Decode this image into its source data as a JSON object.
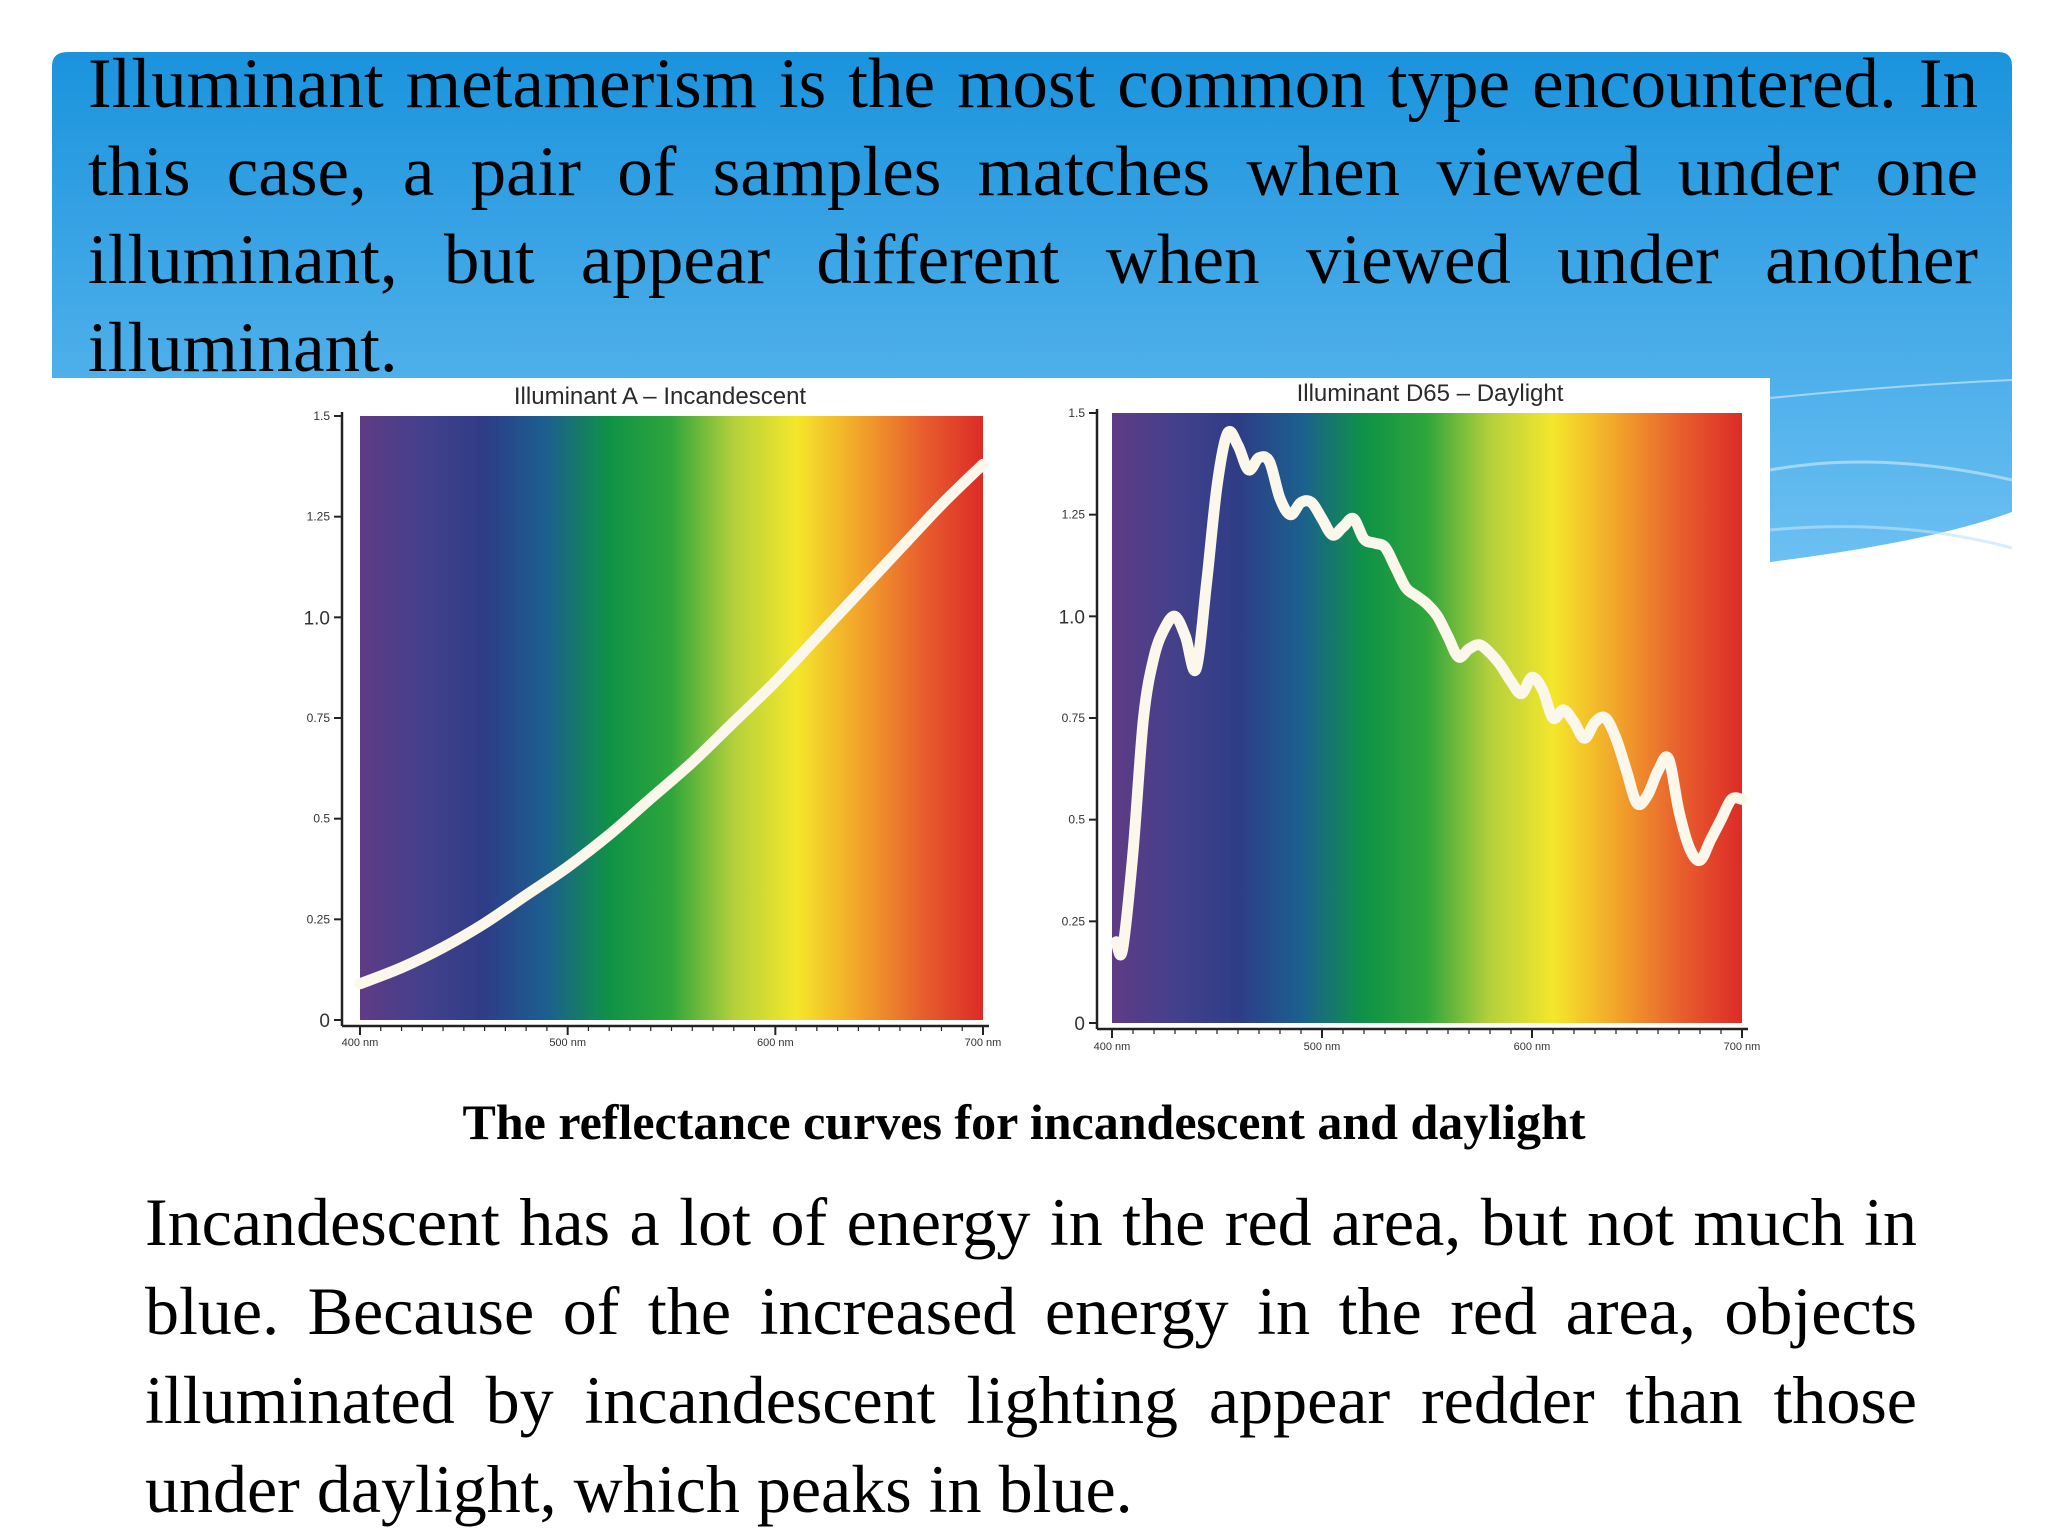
{
  "slide": {
    "heading": "Illuminant metamerism is the most common type encountered. In this case, a pair of samples matches when viewed under one illuminant, but appear different when viewed under another illuminant.",
    "caption": "The reflectance curves for incandescent and daylight",
    "body": "Incandescent has a lot of energy in the red area, but not much in blue. Because of the increased energy in the red area, objects illuminated by incandescent lighting appear redder than those under daylight, which peaks in blue.",
    "colors": {
      "banner_top": "#1a93dd",
      "banner_bottom": "#6cc0f2",
      "curve": "#fbf7ea"
    }
  },
  "chart_data": [
    {
      "type": "line",
      "title": "Illuminant A – Incandescent",
      "xlabel": "",
      "ylabel": "",
      "xlim": [
        400,
        700
      ],
      "ylim": [
        0,
        1.5
      ],
      "x_ticks": [
        {
          "value": 400,
          "label": "400 nm"
        },
        {
          "value": 500,
          "label": "500 nm"
        },
        {
          "value": 600,
          "label": "600 nm"
        },
        {
          "value": 700,
          "label": "700 nm"
        }
      ],
      "y_ticks": [
        {
          "value": 0,
          "label": "0"
        },
        {
          "value": 0.25,
          "label": "0.25"
        },
        {
          "value": 0.5,
          "label": "0.5"
        },
        {
          "value": 0.75,
          "label": "0.75"
        },
        {
          "value": 1.0,
          "label": "1.0"
        },
        {
          "value": 1.25,
          "label": "1.25"
        },
        {
          "value": 1.5,
          "label": "1.5"
        }
      ],
      "background": "visible spectrum",
      "grid": false,
      "series": [
        {
          "x": [
            400,
            420,
            440,
            460,
            480,
            500,
            520,
            540,
            560,
            580,
            600,
            620,
            640,
            660,
            680,
            700
          ],
          "values": [
            0.09,
            0.13,
            0.18,
            0.24,
            0.31,
            0.38,
            0.46,
            0.55,
            0.64,
            0.74,
            0.84,
            0.95,
            1.06,
            1.17,
            1.28,
            1.38
          ]
        }
      ]
    },
    {
      "type": "line",
      "title": "Illuminant D65 – Daylight",
      "xlabel": "",
      "ylabel": "",
      "xlim": [
        400,
        700
      ],
      "ylim": [
        0,
        1.5
      ],
      "x_ticks": [
        {
          "value": 400,
          "label": "400 nm"
        },
        {
          "value": 500,
          "label": "500 nm"
        },
        {
          "value": 600,
          "label": "600 nm"
        },
        {
          "value": 700,
          "label": "700 nm"
        }
      ],
      "y_ticks": [
        {
          "value": 0,
          "label": "0"
        },
        {
          "value": 0.25,
          "label": "0.25"
        },
        {
          "value": 0.5,
          "label": "0.5"
        },
        {
          "value": 0.75,
          "label": "0.75"
        },
        {
          "value": 1.0,
          "label": "1.0"
        },
        {
          "value": 1.25,
          "label": "1.25"
        },
        {
          "value": 1.5,
          "label": "1.5"
        }
      ],
      "background": "visible spectrum",
      "grid": false,
      "series": [
        {
          "x": [
            402,
            405,
            410,
            415,
            420,
            425,
            430,
            435,
            440,
            445,
            450,
            455,
            460,
            465,
            470,
            475,
            480,
            485,
            490,
            495,
            500,
            505,
            510,
            515,
            520,
            525,
            530,
            535,
            540,
            545,
            550,
            555,
            560,
            565,
            570,
            575,
            580,
            585,
            590,
            595,
            600,
            605,
            610,
            615,
            620,
            625,
            630,
            635,
            640,
            645,
            650,
            655,
            660,
            665,
            670,
            675,
            680,
            685,
            690,
            695,
            700
          ],
          "values": [
            0.2,
            0.18,
            0.42,
            0.75,
            0.9,
            0.97,
            1.0,
            0.95,
            0.87,
            1.08,
            1.32,
            1.45,
            1.42,
            1.36,
            1.39,
            1.38,
            1.29,
            1.25,
            1.28,
            1.28,
            1.24,
            1.2,
            1.22,
            1.24,
            1.19,
            1.18,
            1.17,
            1.12,
            1.07,
            1.05,
            1.03,
            1.0,
            0.95,
            0.9,
            0.92,
            0.93,
            0.91,
            0.88,
            0.84,
            0.81,
            0.85,
            0.82,
            0.75,
            0.77,
            0.74,
            0.7,
            0.74,
            0.75,
            0.7,
            0.62,
            0.54,
            0.56,
            0.62,
            0.65,
            0.52,
            0.43,
            0.4,
            0.45,
            0.5,
            0.55,
            0.55
          ]
        }
      ]
    }
  ]
}
